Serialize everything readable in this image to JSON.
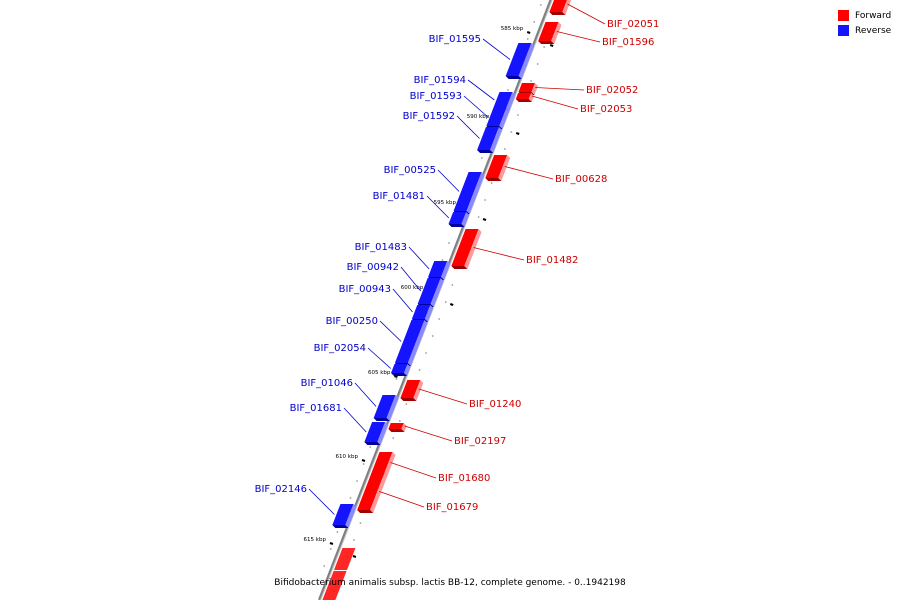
{
  "caption": "Bifidobacterium animalis subsp. lactis BB-12, complete genome. - 0..1942198",
  "legend": [
    {
      "label": "Forward",
      "color": "#ff0000"
    },
    {
      "label": "Reverse",
      "color": "#1414ff"
    }
  ],
  "colors": {
    "forward": "#ff0000",
    "reverse": "#1414ff",
    "backbone": "#808080",
    "label_forward": "#cc0000",
    "label_reverse": "#0000cc"
  },
  "ticks": [
    "585 kbp",
    "590 kbp",
    "595 kbp",
    "600 kbp",
    "605 kbp",
    "610 kbp",
    "615 kbp"
  ],
  "genes": [
    {
      "name": "BIF_02051",
      "strand": "forward"
    },
    {
      "name": "BIF_01596",
      "strand": "forward"
    },
    {
      "name": "BIF_01595",
      "strand": "reverse"
    },
    {
      "name": "BIF_01594",
      "strand": "reverse"
    },
    {
      "name": "BIF_02052",
      "strand": "forward"
    },
    {
      "name": "BIF_01593",
      "strand": "reverse"
    },
    {
      "name": "BIF_02053",
      "strand": "forward"
    },
    {
      "name": "BIF_01592",
      "strand": "reverse"
    },
    {
      "name": "BIF_00628",
      "strand": "forward"
    },
    {
      "name": "BIF_00525",
      "strand": "reverse"
    },
    {
      "name": "BIF_01481",
      "strand": "reverse"
    },
    {
      "name": "BIF_01482",
      "strand": "forward"
    },
    {
      "name": "BIF_01483",
      "strand": "reverse"
    },
    {
      "name": "BIF_00942",
      "strand": "reverse"
    },
    {
      "name": "BIF_00943",
      "strand": "reverse"
    },
    {
      "name": "BIF_00250",
      "strand": "reverse"
    },
    {
      "name": "BIF_02054",
      "strand": "reverse"
    },
    {
      "name": "BIF_01046",
      "strand": "reverse"
    },
    {
      "name": "BIF_01240",
      "strand": "forward"
    },
    {
      "name": "BIF_01681",
      "strand": "reverse"
    },
    {
      "name": "BIF_02197",
      "strand": "forward"
    },
    {
      "name": "BIF_01680",
      "strand": "forward"
    },
    {
      "name": "BIF_01679",
      "strand": "forward"
    },
    {
      "name": "BIF_02146",
      "strand": "reverse"
    }
  ]
}
